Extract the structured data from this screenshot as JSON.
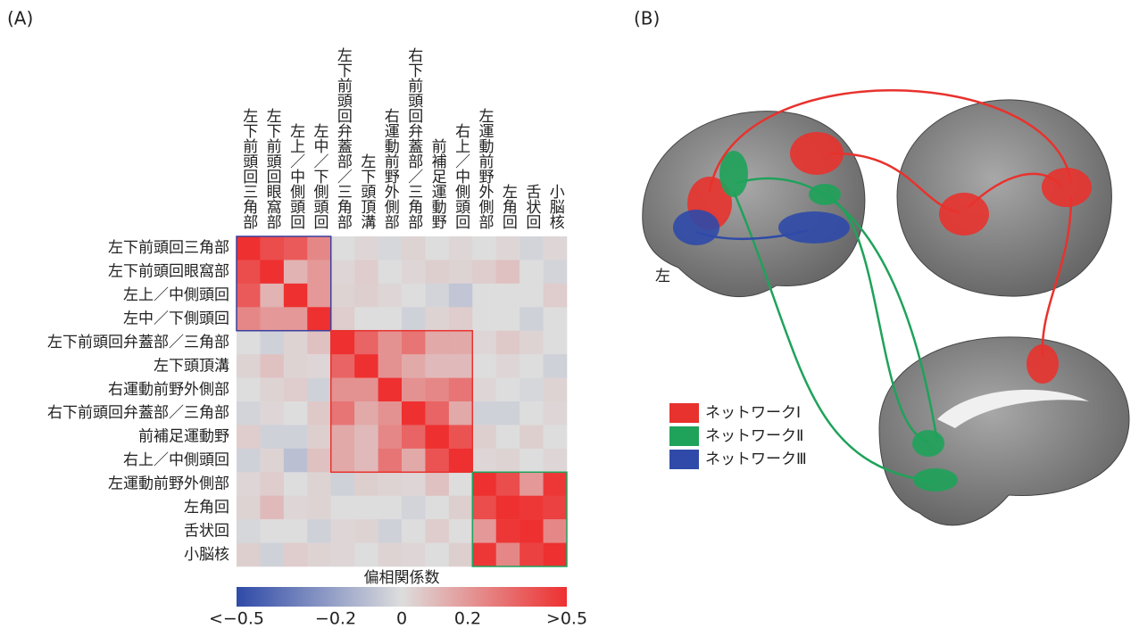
{
  "chart_data": {
    "type": "heatmap",
    "panel_label": "(A)",
    "categories": [
      "左下前頭回三角部",
      "左下前頭回眼窩部",
      "左上／中側頭回",
      "左中／下側頭回",
      "左下前頭回弁蓋部／三角部",
      "左下頭頂溝",
      "右運動前野外側部",
      "右下前頭回弁蓋部／三角部",
      "前補足運動野",
      "右上／中側頭回",
      "左運動前野外側部",
      "左角回",
      "舌状回",
      "小脳核"
    ],
    "groups": [
      {
        "color": "#3a3f9e",
        "size": 4
      },
      {
        "color": "#e8322d",
        "size": 6
      },
      {
        "color": "#1fa25a",
        "size": 4
      }
    ],
    "values": [
      [
        0.5,
        0.42,
        0.38,
        0.25,
        0.0,
        0.02,
        -0.02,
        0.03,
        0.0,
        0.02,
        0.0,
        0.02,
        -0.03,
        0.02
      ],
      [
        0.42,
        0.5,
        0.12,
        0.2,
        0.02,
        0.05,
        0.0,
        0.02,
        0.04,
        0.03,
        0.05,
        0.08,
        0.0,
        -0.03
      ],
      [
        0.38,
        0.12,
        0.5,
        0.2,
        0.03,
        0.04,
        0.02,
        0.0,
        -0.03,
        -0.08,
        0.0,
        0.0,
        0.0,
        0.05
      ],
      [
        0.25,
        0.2,
        0.2,
        0.5,
        0.05,
        0.0,
        0.0,
        -0.04,
        0.03,
        0.05,
        0.0,
        0.0,
        -0.04,
        0.0
      ],
      [
        0.0,
        -0.04,
        0.03,
        0.08,
        0.5,
        0.35,
        0.22,
        0.3,
        0.15,
        0.15,
        0.02,
        0.06,
        0.03,
        0.0
      ],
      [
        0.03,
        0.08,
        0.03,
        0.02,
        0.35,
        0.5,
        0.22,
        0.15,
        0.1,
        0.1,
        0.0,
        0.02,
        0.0,
        -0.04
      ],
      [
        0.0,
        0.03,
        0.05,
        -0.04,
        0.22,
        0.22,
        0.5,
        0.22,
        0.25,
        0.3,
        0.02,
        0.0,
        -0.02,
        0.03
      ],
      [
        -0.03,
        0.02,
        0.0,
        0.06,
        0.3,
        0.15,
        0.22,
        0.5,
        0.35,
        0.15,
        -0.04,
        -0.04,
        0.0,
        0.02
      ],
      [
        0.05,
        -0.04,
        -0.04,
        0.04,
        0.15,
        0.1,
        0.25,
        0.35,
        0.5,
        0.4,
        0.04,
        0.0,
        0.04,
        0.0
      ],
      [
        -0.04,
        0.03,
        -0.1,
        0.08,
        0.15,
        0.1,
        0.3,
        0.15,
        0.4,
        0.5,
        0.02,
        0.03,
        0.0,
        0.02
      ],
      [
        0.02,
        0.05,
        0.0,
        0.03,
        -0.04,
        0.04,
        0.03,
        0.02,
        0.08,
        0.0,
        0.5,
        0.42,
        0.2,
        0.48
      ],
      [
        0.03,
        0.1,
        0.02,
        0.03,
        0.0,
        0.0,
        0.0,
        -0.03,
        0.0,
        0.04,
        0.42,
        0.5,
        0.48,
        0.45
      ],
      [
        -0.02,
        0.0,
        0.0,
        -0.04,
        0.02,
        0.03,
        -0.04,
        0.0,
        0.05,
        0.0,
        0.2,
        0.48,
        0.5,
        0.25
      ],
      [
        0.04,
        -0.04,
        0.05,
        0.03,
        0.02,
        0.0,
        0.03,
        0.02,
        0.0,
        0.04,
        0.48,
        0.25,
        0.45,
        0.5
      ]
    ],
    "zlim": [
      -0.5,
      0.5
    ],
    "colormap": [
      "#2f4aa8",
      "#dddddd",
      "#ee3030"
    ],
    "colorbar_title": "偏相関係数",
    "colorbar_ticks": [
      {
        "value": -0.5,
        "label": "<−0.5"
      },
      {
        "value": -0.2,
        "label": "−0.2"
      },
      0,
      0.2,
      {
        "value": 0.5,
        "label": ">0.5"
      }
    ]
  },
  "panel_b": {
    "panel_label": "(B)",
    "side_label": "左",
    "legend": [
      {
        "name": "ネットワークⅠ",
        "color": "#e8322d"
      },
      {
        "name": "ネットワークⅡ",
        "color": "#1fa25a"
      },
      {
        "name": "ネットワークⅢ",
        "color": "#2f4aa8"
      }
    ]
  }
}
